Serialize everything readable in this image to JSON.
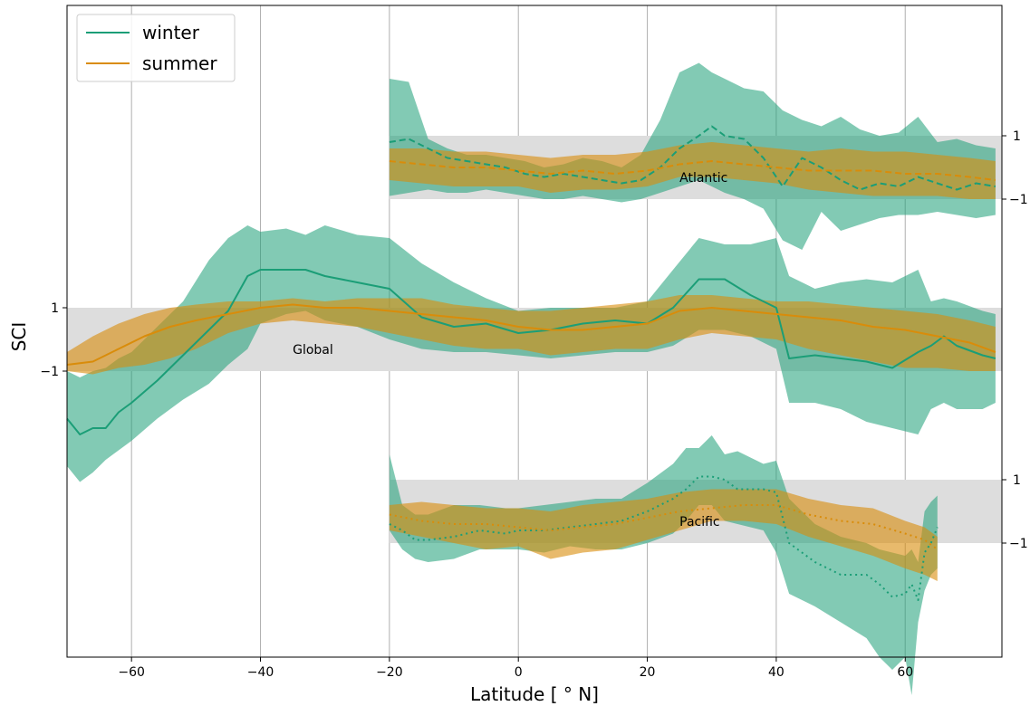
{
  "chart_data": {
    "type": "line",
    "xlabel": "Latitude [$^\\circ$N]",
    "xlabel_display": "Latitude [ ° N]",
    "ylabel": "SCI",
    "xlim": [
      -70,
      75
    ],
    "x_ticks": [
      -60,
      -40,
      -20,
      0,
      20,
      40,
      60
    ],
    "x_tick_labels": [
      "−60",
      "−40",
      "−20",
      "0",
      "20",
      "40",
      "60"
    ],
    "x_grid": true,
    "y_tick_labels": {
      "upper": "1",
      "lower": "−1"
    },
    "legend": {
      "placement": "top-left",
      "entries": [
        "winter",
        "summer"
      ]
    },
    "colors": {
      "winter": "#1b9e77",
      "summer": "#d98c0a",
      "band": "#dddddd"
    },
    "panels": [
      {
        "name": "Atlantic",
        "line_style": "dashed",
        "tick_side": "right",
        "x_range": [
          -20,
          75
        ],
        "series": [
          {
            "name": "winter",
            "x": [
              -20,
              -17,
              -14,
              -11,
              -8,
              -5,
              -2,
              1,
              4,
              7,
              10,
              13,
              16,
              19,
              22,
              25,
              28,
              30,
              32,
              35,
              38,
              41,
              44,
              47,
              50,
              53,
              56,
              59,
              62,
              65,
              68,
              71,
              74
            ],
            "y": [
              0.8,
              0.9,
              0.6,
              0.3,
              0.2,
              0.1,
              0.0,
              -0.2,
              -0.3,
              -0.2,
              -0.3,
              -0.4,
              -0.5,
              -0.4,
              0.0,
              0.6,
              1.0,
              1.3,
              1.0,
              0.9,
              0.3,
              -0.6,
              0.3,
              0.0,
              -0.4,
              -0.7,
              -0.5,
              -0.6,
              -0.3,
              -0.5,
              -0.7,
              -0.5,
              -0.6
            ],
            "low": [
              -0.9,
              -0.8,
              -0.7,
              -0.8,
              -0.8,
              -0.7,
              -0.8,
              -0.9,
              -1.0,
              -1.0,
              -0.9,
              -1.0,
              -1.1,
              -1.0,
              -0.8,
              -0.6,
              -0.4,
              -0.6,
              -0.8,
              -1.0,
              -1.3,
              -2.3,
              -2.6,
              -1.4,
              -2.0,
              -1.8,
              -1.6,
              -1.5,
              -1.5,
              -1.4,
              -1.5,
              -1.6,
              -1.5
            ],
            "high": [
              2.8,
              2.7,
              0.9,
              0.6,
              0.4,
              0.4,
              0.3,
              0.2,
              0.0,
              0.1,
              0.3,
              0.2,
              0.0,
              0.4,
              1.5,
              3.0,
              3.3,
              3.0,
              2.8,
              2.5,
              2.4,
              1.8,
              1.5,
              1.3,
              1.6,
              1.2,
              1.0,
              1.1,
              1.6,
              0.8,
              0.9,
              0.7,
              0.6
            ]
          },
          {
            "name": "summer",
            "x": [
              -20,
              -15,
              -10,
              -5,
              0,
              5,
              10,
              15,
              20,
              25,
              30,
              35,
              40,
              45,
              50,
              55,
              60,
              65,
              70,
              74
            ],
            "y": [
              0.2,
              0.1,
              0.0,
              0.0,
              -0.1,
              -0.2,
              -0.1,
              -0.2,
              -0.1,
              0.1,
              0.2,
              0.1,
              0.0,
              -0.1,
              -0.1,
              -0.1,
              -0.2,
              -0.2,
              -0.3,
              -0.4
            ],
            "low": [
              -0.4,
              -0.5,
              -0.6,
              -0.6,
              -0.6,
              -0.8,
              -0.7,
              -0.7,
              -0.6,
              -0.3,
              -0.3,
              -0.4,
              -0.5,
              -0.7,
              -0.8,
              -0.9,
              -0.9,
              -0.9,
              -1.0,
              -1.0
            ],
            "high": [
              0.6,
              0.6,
              0.5,
              0.5,
              0.4,
              0.3,
              0.4,
              0.4,
              0.5,
              0.7,
              0.8,
              0.7,
              0.6,
              0.5,
              0.6,
              0.5,
              0.5,
              0.4,
              0.3,
              0.2
            ]
          }
        ]
      },
      {
        "name": "Global",
        "line_style": "solid",
        "tick_side": "left",
        "x_range": [
          -70,
          75
        ],
        "series": [
          {
            "name": "winter",
            "x": [
              -70,
              -68,
              -66,
              -64,
              -62,
              -60,
              -56,
              -52,
              -48,
              -45,
              -42,
              -40,
              -36,
              -33,
              -30,
              -25,
              -20,
              -15,
              -10,
              -5,
              0,
              5,
              10,
              15,
              20,
              24,
              28,
              32,
              36,
              40,
              42,
              46,
              50,
              54,
              58,
              62,
              64,
              66,
              68,
              72,
              74
            ],
            "y": [
              -2.5,
              -3.0,
              -2.8,
              -2.8,
              -2.3,
              -2.0,
              -1.3,
              -0.5,
              0.3,
              0.9,
              2.0,
              2.2,
              2.2,
              2.2,
              2.0,
              1.8,
              1.6,
              0.7,
              0.4,
              0.5,
              0.2,
              0.3,
              0.5,
              0.6,
              0.5,
              1.0,
              1.9,
              1.9,
              1.4,
              1.0,
              -0.6,
              -0.5,
              -0.6,
              -0.7,
              -0.9,
              -0.4,
              -0.2,
              0.1,
              -0.2,
              -0.5,
              -0.6
            ],
            "low": [
              -4.0,
              -4.5,
              -4.2,
              -3.8,
              -3.5,
              -3.2,
              -2.5,
              -1.9,
              -1.4,
              -0.8,
              -0.3,
              0.5,
              0.8,
              0.9,
              0.6,
              0.4,
              0.0,
              -0.3,
              -0.4,
              -0.4,
              -0.5,
              -0.6,
              -0.5,
              -0.4,
              -0.4,
              -0.2,
              0.3,
              0.3,
              0.1,
              -0.3,
              -2.0,
              -2.0,
              -2.2,
              -2.6,
              -2.8,
              -3.0,
              -2.2,
              -2.0,
              -2.2,
              -2.2,
              -2.0
            ],
            "high": [
              -1.0,
              -1.2,
              -1.0,
              -0.9,
              -0.6,
              -0.4,
              0.4,
              1.2,
              2.5,
              3.2,
              3.6,
              3.4,
              3.5,
              3.3,
              3.6,
              3.3,
              3.2,
              2.4,
              1.8,
              1.3,
              0.9,
              1.0,
              1.0,
              1.0,
              1.2,
              2.2,
              3.2,
              3.0,
              3.0,
              3.2,
              2.0,
              1.6,
              1.8,
              1.9,
              1.8,
              2.2,
              1.2,
              1.3,
              1.2,
              0.9,
              0.8
            ]
          },
          {
            "name": "summer",
            "x": [
              -70,
              -66,
              -62,
              -58,
              -54,
              -50,
              -45,
              -40,
              -35,
              -30,
              -25,
              -20,
              -15,
              -10,
              -5,
              0,
              5,
              10,
              15,
              20,
              25,
              30,
              35,
              40,
              45,
              50,
              55,
              60,
              65,
              70,
              74
            ],
            "y": [
              -0.8,
              -0.7,
              -0.3,
              0.1,
              0.4,
              0.6,
              0.8,
              1.0,
              1.1,
              1.0,
              1.0,
              0.9,
              0.8,
              0.7,
              0.6,
              0.4,
              0.3,
              0.3,
              0.4,
              0.5,
              0.9,
              1.0,
              0.9,
              0.8,
              0.7,
              0.6,
              0.4,
              0.3,
              0.1,
              -0.1,
              -0.4
            ],
            "low": [
              -1.0,
              -1.1,
              -0.9,
              -0.8,
              -0.6,
              -0.3,
              0.2,
              0.5,
              0.6,
              0.5,
              0.4,
              0.2,
              0.0,
              -0.2,
              -0.3,
              -0.3,
              -0.5,
              -0.4,
              -0.3,
              -0.3,
              0.0,
              0.2,
              0.1,
              0.0,
              -0.3,
              -0.5,
              -0.7,
              -0.9,
              -0.9,
              -1.0,
              -1.0
            ],
            "high": [
              -0.4,
              0.1,
              0.5,
              0.8,
              1.0,
              1.1,
              1.2,
              1.2,
              1.3,
              1.2,
              1.3,
              1.3,
              1.3,
              1.1,
              1.0,
              0.9,
              0.9,
              1.0,
              1.1,
              1.2,
              1.4,
              1.4,
              1.3,
              1.2,
              1.2,
              1.1,
              1.0,
              0.9,
              0.8,
              0.6,
              0.4
            ]
          }
        ]
      },
      {
        "name": "Pacific",
        "line_style": "dotted",
        "tick_side": "right",
        "x_range": [
          -20,
          65
        ],
        "series": [
          {
            "name": "winter",
            "x": [
              -20,
              -18,
              -16,
              -14,
              -10,
              -6,
              -2,
              0,
              4,
              8,
              12,
              16,
              20,
              24,
              26,
              28,
              30,
              32,
              34,
              38,
              40,
              42,
              46,
              50,
              54,
              56,
              58,
              60,
              61,
              62,
              63,
              64,
              65
            ],
            "y": [
              -0.4,
              -0.6,
              -0.9,
              -0.9,
              -0.8,
              -0.6,
              -0.7,
              -0.6,
              -0.6,
              -0.5,
              -0.4,
              -0.3,
              0.0,
              0.4,
              0.7,
              1.1,
              1.1,
              1.0,
              0.7,
              0.7,
              0.6,
              -1.0,
              -1.6,
              -2.0,
              -2.0,
              -2.3,
              -2.7,
              -2.6,
              -2.3,
              -2.8,
              -1.3,
              -1.0,
              -0.5
            ],
            "low": [
              -0.6,
              -1.2,
              -1.5,
              -1.6,
              -1.5,
              -1.2,
              -1.2,
              -1.2,
              -1.3,
              -1.1,
              -1.2,
              -1.2,
              -1.0,
              -0.7,
              -0.3,
              0.2,
              0.2,
              -0.3,
              -0.4,
              -0.6,
              -1.3,
              -2.6,
              -3.0,
              -3.5,
              -4.0,
              -4.6,
              -5.0,
              -4.6,
              -5.8,
              -3.5,
              -2.5,
              -2.0,
              -1.8
            ],
            "high": [
              1.8,
              0.2,
              -0.1,
              -0.1,
              0.2,
              0.2,
              0.1,
              0.1,
              0.2,
              0.3,
              0.4,
              0.4,
              0.9,
              1.5,
              2.0,
              2.0,
              2.4,
              1.8,
              1.9,
              1.5,
              1.6,
              0.4,
              -0.4,
              -0.8,
              -1.0,
              -1.2,
              -1.3,
              -1.4,
              -1.2,
              -1.6,
              0.0,
              0.3,
              0.5
            ]
          },
          {
            "name": "summer",
            "x": [
              -20,
              -15,
              -10,
              -5,
              0,
              5,
              10,
              15,
              20,
              25,
              30,
              35,
              40,
              45,
              50,
              55,
              60,
              63,
              65
            ],
            "y": [
              -0.1,
              -0.3,
              -0.4,
              -0.4,
              -0.5,
              -0.6,
              -0.5,
              -0.4,
              -0.2,
              0.0,
              0.1,
              0.2,
              0.2,
              -0.1,
              -0.3,
              -0.4,
              -0.7,
              -0.9,
              -1.2
            ],
            "low": [
              -0.6,
              -0.8,
              -1.0,
              -1.2,
              -1.1,
              -1.5,
              -1.3,
              -1.2,
              -0.9,
              -0.6,
              -0.3,
              -0.3,
              -0.4,
              -0.8,
              -1.1,
              -1.4,
              -1.8,
              -2.0,
              -2.2
            ],
            "high": [
              0.2,
              0.3,
              0.2,
              0.1,
              0.1,
              0.0,
              0.2,
              0.3,
              0.4,
              0.6,
              0.7,
              0.7,
              0.7,
              0.4,
              0.2,
              0.1,
              -0.3,
              -0.5,
              -0.8
            ]
          }
        ]
      }
    ]
  }
}
